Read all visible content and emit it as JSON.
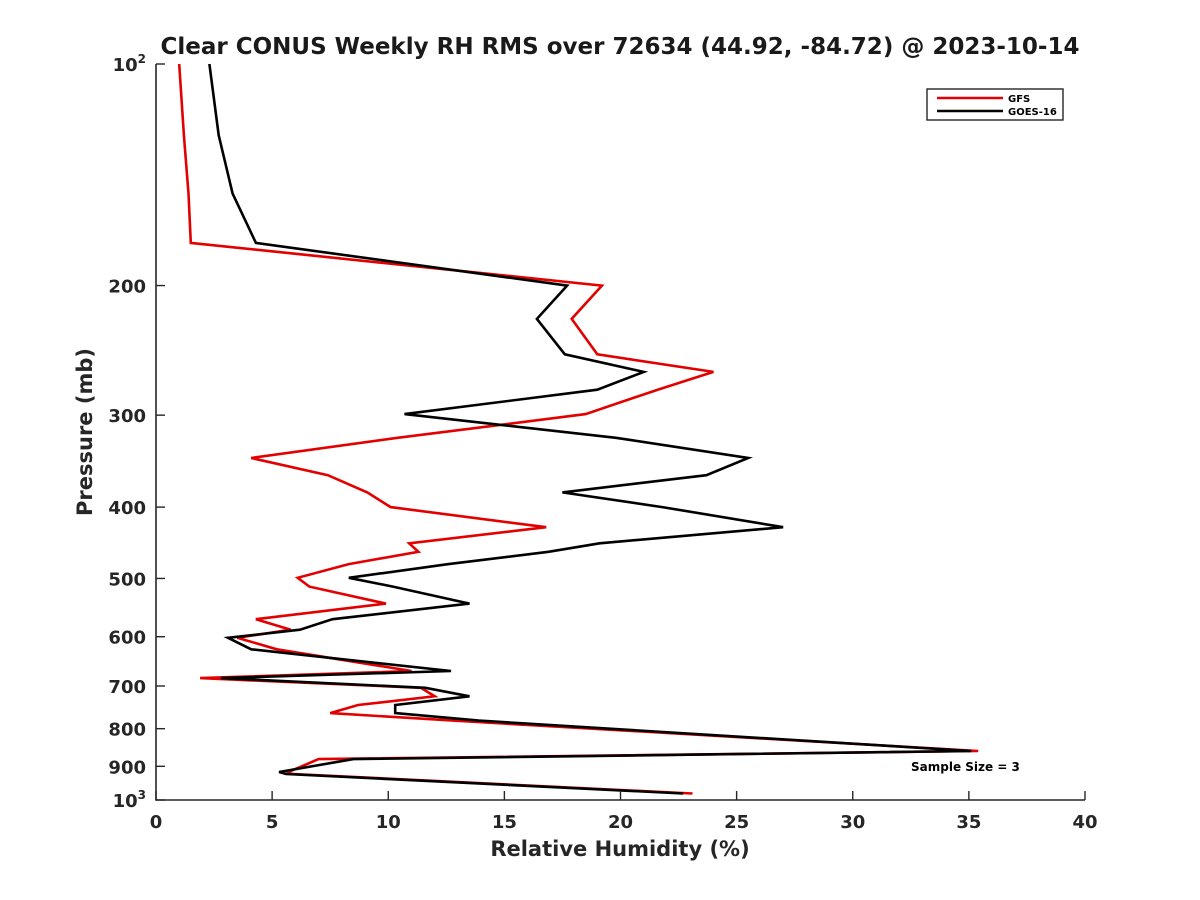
{
  "chart_data": {
    "type": "line",
    "title": "Clear CONUS Weekly RH RMS over 72634 (44.92, -84.72) @ 2023-10-14",
    "xlabel": "Relative Humidity (%)",
    "ylabel": "Pressure (mb)",
    "xlim": [
      0,
      40
    ],
    "ylim": [
      100,
      1000
    ],
    "yscale": "log",
    "y_reversed": true,
    "x_ticks": [
      {
        "value": 0,
        "label": "0"
      },
      {
        "value": 5,
        "label": "5"
      },
      {
        "value": 10,
        "label": "10"
      },
      {
        "value": 15,
        "label": "15"
      },
      {
        "value": 20,
        "label": "20"
      },
      {
        "value": 25,
        "label": "25"
      },
      {
        "value": 30,
        "label": "30"
      },
      {
        "value": 35,
        "label": "35"
      },
      {
        "value": 40,
        "label": "40"
      }
    ],
    "y_ticks": [
      {
        "value": 100,
        "base": "10",
        "exp": "2"
      },
      {
        "value": 200,
        "label": "200"
      },
      {
        "value": 300,
        "label": "300"
      },
      {
        "value": 400,
        "label": "400"
      },
      {
        "value": 500,
        "label": "500"
      },
      {
        "value": 600,
        "label": "600"
      },
      {
        "value": 700,
        "label": "700"
      },
      {
        "value": 800,
        "label": "800"
      },
      {
        "value": 900,
        "label": "900"
      },
      {
        "value": 1000,
        "base": "10",
        "exp": "3"
      }
    ],
    "grid": false,
    "legend_position": "top-right",
    "annotation": "Sample Size = 3",
    "series": [
      {
        "name": "GFS",
        "color": "#e30000",
        "points": [
          [
            1.0,
            100
          ],
          [
            1.2,
            125
          ],
          [
            1.4,
            150
          ],
          [
            1.5,
            175
          ],
          [
            19.2,
            200
          ],
          [
            17.9,
            222
          ],
          [
            19.0,
            248
          ],
          [
            24.0,
            262
          ],
          [
            21.6,
            277
          ],
          [
            18.5,
            299
          ],
          [
            10.4,
            322
          ],
          [
            4.1,
            343
          ],
          [
            7.4,
            362
          ],
          [
            9.1,
            382
          ],
          [
            10.1,
            400
          ],
          [
            16.8,
            426
          ],
          [
            10.9,
            448
          ],
          [
            11.3,
            460
          ],
          [
            8.3,
            478
          ],
          [
            6.1,
            499
          ],
          [
            6.6,
            513
          ],
          [
            9.9,
            541
          ],
          [
            4.3,
            568
          ],
          [
            5.8,
            587
          ],
          [
            3.5,
            602
          ],
          [
            5.2,
            624
          ],
          [
            11.0,
            668
          ],
          [
            1.9,
            683
          ],
          [
            11.4,
            704
          ],
          [
            12.0,
            723
          ],
          [
            8.7,
            743
          ],
          [
            7.5,
            762
          ],
          [
            12.8,
            780
          ],
          [
            35.4,
            858
          ],
          [
            7.0,
            880
          ],
          [
            5.7,
            916
          ],
          [
            5.9,
            922
          ],
          [
            23.1,
            980
          ]
        ]
      },
      {
        "name": "GOES-16",
        "color": "#000000",
        "points": [
          [
            2.3,
            100
          ],
          [
            2.7,
            125
          ],
          [
            3.3,
            150
          ],
          [
            4.3,
            175
          ],
          [
            17.7,
            200
          ],
          [
            16.4,
            222
          ],
          [
            17.6,
            248
          ],
          [
            21.0,
            262
          ],
          [
            19.0,
            277
          ],
          [
            10.7,
            299
          ],
          [
            19.8,
            322
          ],
          [
            25.5,
            343
          ],
          [
            23.7,
            362
          ],
          [
            17.5,
            382
          ],
          [
            21.8,
            400
          ],
          [
            27.0,
            426
          ],
          [
            19.1,
            448
          ],
          [
            16.9,
            460
          ],
          [
            12.6,
            478
          ],
          [
            8.3,
            499
          ],
          [
            10.2,
            513
          ],
          [
            13.5,
            541
          ],
          [
            7.6,
            568
          ],
          [
            6.2,
            587
          ],
          [
            3.1,
            602
          ],
          [
            4.1,
            624
          ],
          [
            12.7,
            668
          ],
          [
            2.8,
            683
          ],
          [
            11.6,
            704
          ],
          [
            13.5,
            723
          ],
          [
            10.3,
            743
          ],
          [
            10.3,
            762
          ],
          [
            13.9,
            780
          ],
          [
            35.1,
            858
          ],
          [
            8.5,
            880
          ],
          [
            5.3,
            916
          ],
          [
            5.6,
            922
          ],
          [
            22.7,
            980
          ]
        ]
      }
    ]
  }
}
